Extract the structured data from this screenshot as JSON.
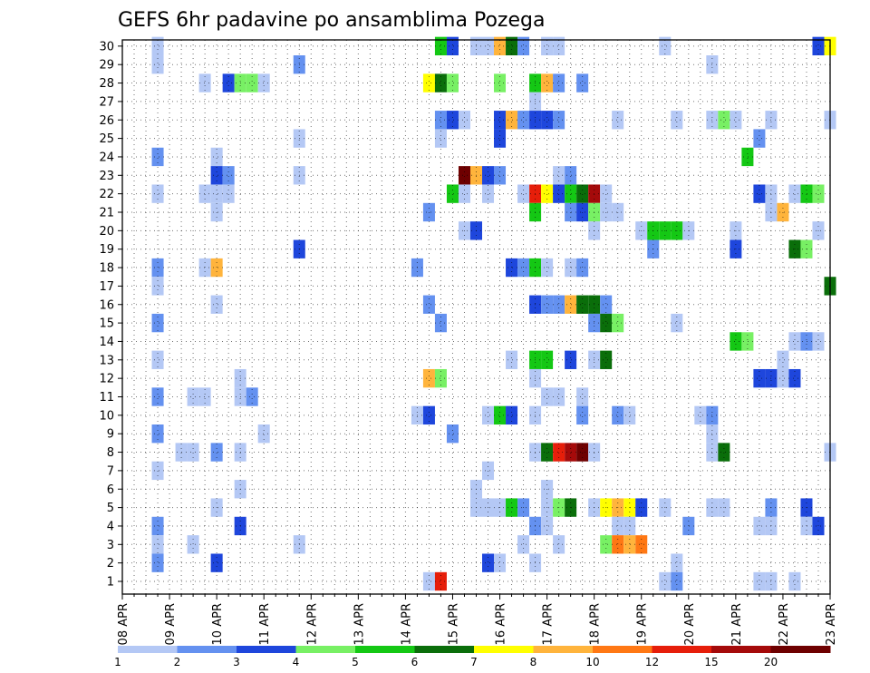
{
  "chart_data": {
    "type": "heatmap",
    "title": "GEFS 6hr padavine po ansamblima Pozega",
    "members": [
      1,
      2,
      3,
      4,
      5,
      6,
      7,
      8,
      9,
      10,
      11,
      12,
      13,
      14,
      15,
      16,
      17,
      18,
      19,
      20,
      21,
      22,
      23,
      24,
      25,
      26,
      27,
      28,
      29,
      30
    ],
    "x_tick_labels": [
      "08 APR",
      "09 APR",
      "10 APR",
      "11 APR",
      "12 APR",
      "13 APR",
      "14 APR",
      "15 APR",
      "16 APR",
      "17 APR",
      "18 APR",
      "19 APR",
      "20 APR",
      "21 APR",
      "22 APR",
      "23 APR"
    ],
    "x_unit": "6-hour step from 08 APR 00",
    "x_range": [
      0,
      60
    ],
    "grid": true,
    "legend": {
      "labels": [
        "1",
        "2",
        "3",
        "4",
        "5",
        "6",
        "7",
        "8",
        "10",
        "12",
        "15",
        "20"
      ],
      "colors": [
        "#b4c8f5",
        "#6491f0",
        "#1e46dc",
        "#78f064",
        "#14c814",
        "#0a6e0a",
        "#ffff00",
        "#ffb43c",
        "#ff7814",
        "#e61e0a",
        "#a50a0a",
        "#6e0000"
      ],
      "placement": "bottom"
    },
    "cells": [
      {
        "m": 30,
        "x": [
          [
            3,
            0
          ],
          [
            27,
            4
          ],
          [
            28,
            2
          ],
          [
            30,
            0
          ],
          [
            31,
            0
          ],
          [
            32,
            7
          ],
          [
            33,
            5
          ],
          [
            34,
            1
          ],
          [
            36,
            0
          ],
          [
            37,
            0
          ],
          [
            46,
            0
          ],
          [
            59,
            2
          ],
          [
            60,
            6
          ]
        ]
      },
      {
        "m": 29,
        "x": [
          [
            3,
            0
          ],
          [
            15,
            1
          ],
          [
            50,
            0
          ]
        ]
      },
      {
        "m": 28,
        "x": [
          [
            7,
            0
          ],
          [
            9,
            2
          ],
          [
            10,
            3
          ],
          [
            11,
            3
          ],
          [
            12,
            0
          ],
          [
            26,
            6
          ],
          [
            27,
            5
          ],
          [
            28,
            3
          ],
          [
            32,
            3
          ],
          [
            35,
            4
          ],
          [
            36,
            7
          ],
          [
            37,
            1
          ],
          [
            39,
            1
          ]
        ]
      },
      {
        "m": 27,
        "x": [
          [
            35,
            0
          ]
        ]
      },
      {
        "m": 26,
        "x": [
          [
            27,
            1
          ],
          [
            28,
            2
          ],
          [
            29,
            0
          ],
          [
            32,
            2
          ],
          [
            33,
            7
          ],
          [
            34,
            1
          ],
          [
            35,
            2
          ],
          [
            36,
            2
          ],
          [
            37,
            1
          ],
          [
            42,
            0
          ],
          [
            47,
            0
          ],
          [
            50,
            0
          ],
          [
            51,
            3
          ],
          [
            52,
            0
          ],
          [
            55,
            0
          ],
          [
            60,
            0
          ]
        ]
      },
      {
        "m": 25,
        "x": [
          [
            15,
            0
          ],
          [
            27,
            0
          ],
          [
            32,
            2
          ],
          [
            54,
            1
          ]
        ]
      },
      {
        "m": 24,
        "x": [
          [
            3,
            1
          ],
          [
            8,
            0
          ],
          [
            53,
            4
          ]
        ]
      },
      {
        "m": 23,
        "x": [
          [
            8,
            2
          ],
          [
            9,
            1
          ],
          [
            15,
            0
          ],
          [
            29,
            11
          ],
          [
            30,
            7
          ],
          [
            31,
            2
          ],
          [
            32,
            1
          ],
          [
            37,
            0
          ],
          [
            38,
            1
          ]
        ]
      },
      {
        "m": 22,
        "x": [
          [
            3,
            0
          ],
          [
            7,
            0
          ],
          [
            8,
            0
          ],
          [
            9,
            0
          ],
          [
            28,
            4
          ],
          [
            29,
            0
          ],
          [
            31,
            0
          ],
          [
            34,
            0
          ],
          [
            35,
            9
          ],
          [
            36,
            6
          ],
          [
            37,
            2
          ],
          [
            38,
            4
          ],
          [
            39,
            5
          ],
          [
            40,
            10
          ],
          [
            41,
            0
          ],
          [
            54,
            2
          ],
          [
            55,
            0
          ],
          [
            57,
            0
          ],
          [
            58,
            4
          ],
          [
            59,
            3
          ]
        ]
      },
      {
        "m": 21,
        "x": [
          [
            8,
            0
          ],
          [
            26,
            1
          ],
          [
            35,
            4
          ],
          [
            38,
            1
          ],
          [
            39,
            2
          ],
          [
            40,
            3
          ],
          [
            41,
            0
          ],
          [
            42,
            0
          ],
          [
            55,
            0
          ],
          [
            56,
            7
          ]
        ]
      },
      {
        "m": 20,
        "x": [
          [
            29,
            0
          ],
          [
            30,
            2
          ],
          [
            40,
            0
          ],
          [
            44,
            0
          ],
          [
            45,
            4
          ],
          [
            46,
            4
          ],
          [
            47,
            4
          ],
          [
            48,
            0
          ],
          [
            52,
            0
          ],
          [
            59,
            0
          ]
        ]
      },
      {
        "m": 19,
        "x": [
          [
            15,
            2
          ],
          [
            45,
            1
          ],
          [
            52,
            2
          ],
          [
            57,
            5
          ],
          [
            58,
            3
          ]
        ]
      },
      {
        "m": 18,
        "x": [
          [
            3,
            1
          ],
          [
            7,
            0
          ],
          [
            8,
            7
          ],
          [
            25,
            1
          ],
          [
            33,
            2
          ],
          [
            34,
            1
          ],
          [
            35,
            4
          ],
          [
            36,
            0
          ],
          [
            38,
            0
          ],
          [
            39,
            1
          ]
        ]
      },
      {
        "m": 17,
        "x": [
          [
            3,
            0
          ],
          [
            60,
            5
          ]
        ]
      },
      {
        "m": 16,
        "x": [
          [
            8,
            0
          ],
          [
            26,
            1
          ],
          [
            35,
            2
          ],
          [
            36,
            1
          ],
          [
            37,
            1
          ],
          [
            38,
            7
          ],
          [
            39,
            5
          ],
          [
            40,
            5
          ],
          [
            41,
            1
          ]
        ]
      },
      {
        "m": 15,
        "x": [
          [
            3,
            1
          ],
          [
            27,
            1
          ],
          [
            40,
            1
          ],
          [
            41,
            5
          ],
          [
            42,
            3
          ],
          [
            47,
            0
          ]
        ]
      },
      {
        "m": 14,
        "x": [
          [
            52,
            4
          ],
          [
            53,
            3
          ],
          [
            57,
            0
          ],
          [
            58,
            1
          ],
          [
            59,
            0
          ]
        ]
      },
      {
        "m": 13,
        "x": [
          [
            3,
            0
          ],
          [
            33,
            0
          ],
          [
            35,
            4
          ],
          [
            36,
            4
          ],
          [
            38,
            2
          ],
          [
            40,
            0
          ],
          [
            41,
            5
          ],
          [
            56,
            0
          ]
        ]
      },
      {
        "m": 12,
        "x": [
          [
            10,
            0
          ],
          [
            26,
            7
          ],
          [
            27,
            3
          ],
          [
            35,
            0
          ],
          [
            54,
            2
          ],
          [
            55,
            2
          ],
          [
            56,
            0
          ],
          [
            57,
            2
          ]
        ]
      },
      {
        "m": 11,
        "x": [
          [
            3,
            1
          ],
          [
            6,
            0
          ],
          [
            7,
            0
          ],
          [
            10,
            0
          ],
          [
            11,
            1
          ],
          [
            36,
            0
          ],
          [
            37,
            0
          ],
          [
            39,
            0
          ]
        ]
      },
      {
        "m": 10,
        "x": [
          [
            25,
            0
          ],
          [
            26,
            2
          ],
          [
            31,
            0
          ],
          [
            32,
            4
          ],
          [
            33,
            2
          ],
          [
            35,
            0
          ],
          [
            39,
            1
          ],
          [
            42,
            1
          ],
          [
            43,
            0
          ],
          [
            49,
            0
          ],
          [
            50,
            1
          ]
        ]
      },
      {
        "m": 9,
        "x": [
          [
            3,
            1
          ],
          [
            12,
            0
          ],
          [
            28,
            1
          ],
          [
            50,
            0
          ]
        ]
      },
      {
        "m": 8,
        "x": [
          [
            5,
            0
          ],
          [
            6,
            0
          ],
          [
            8,
            1
          ],
          [
            10,
            0
          ],
          [
            35,
            0
          ],
          [
            36,
            5
          ],
          [
            37,
            9
          ],
          [
            38,
            10
          ],
          [
            39,
            11
          ],
          [
            40,
            0
          ],
          [
            50,
            0
          ],
          [
            51,
            5
          ],
          [
            60,
            0
          ]
        ]
      },
      {
        "m": 7,
        "x": [
          [
            3,
            0
          ],
          [
            31,
            0
          ]
        ]
      },
      {
        "m": 6,
        "x": [
          [
            10,
            0
          ],
          [
            30,
            0
          ],
          [
            36,
            0
          ]
        ]
      },
      {
        "m": 5,
        "x": [
          [
            8,
            0
          ],
          [
            30,
            0
          ],
          [
            31,
            0
          ],
          [
            32,
            0
          ],
          [
            33,
            4
          ],
          [
            34,
            1
          ],
          [
            36,
            0
          ],
          [
            37,
            3
          ],
          [
            38,
            5
          ],
          [
            40,
            0
          ],
          [
            41,
            6
          ],
          [
            42,
            7
          ],
          [
            43,
            6
          ],
          [
            44,
            2
          ],
          [
            46,
            0
          ],
          [
            50,
            0
          ],
          [
            51,
            0
          ],
          [
            55,
            1
          ],
          [
            58,
            2
          ]
        ]
      },
      {
        "m": 4,
        "x": [
          [
            3,
            1
          ],
          [
            10,
            2
          ],
          [
            35,
            1
          ],
          [
            36,
            0
          ],
          [
            42,
            0
          ],
          [
            43,
            0
          ],
          [
            48,
            1
          ],
          [
            54,
            0
          ],
          [
            55,
            0
          ],
          [
            58,
            0
          ],
          [
            59,
            2
          ]
        ]
      },
      {
        "m": 3,
        "x": [
          [
            3,
            0
          ],
          [
            6,
            0
          ],
          [
            15,
            0
          ],
          [
            34,
            0
          ],
          [
            37,
            0
          ],
          [
            41,
            3
          ],
          [
            42,
            8
          ],
          [
            43,
            7
          ],
          [
            44,
            8
          ]
        ]
      },
      {
        "m": 2,
        "x": [
          [
            3,
            1
          ],
          [
            8,
            2
          ],
          [
            31,
            2
          ],
          [
            32,
            0
          ],
          [
            35,
            0
          ],
          [
            47,
            0
          ]
        ]
      },
      {
        "m": 1,
        "x": [
          [
            26,
            0
          ],
          [
            27,
            9
          ],
          [
            46,
            0
          ],
          [
            47,
            1
          ],
          [
            54,
            0
          ],
          [
            55,
            0
          ],
          [
            57,
            0
          ]
        ]
      }
    ]
  }
}
